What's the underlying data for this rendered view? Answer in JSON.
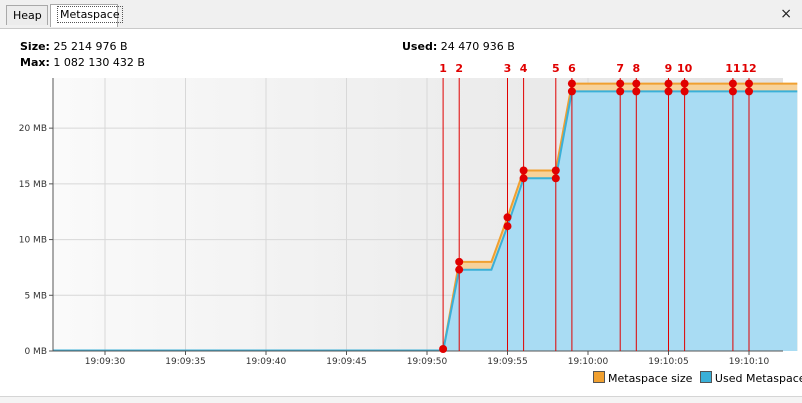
{
  "tabs": [
    {
      "label": "Heap",
      "active": false
    },
    {
      "label": "Metaspace",
      "active": true
    }
  ],
  "close_symbol": "×",
  "stats": {
    "size_label": "Size:",
    "size_value": "25 214 976 B",
    "max_label": "Max:",
    "max_value": "1 082 130 432 B",
    "used_label": "Used:",
    "used_value": "24 470 936 B"
  },
  "legend": {
    "metaspace_size": "Metaspace size",
    "used_metaspace": "Used Metaspace"
  },
  "colors": {
    "metaspace_size_line": "#f0a030",
    "metaspace_size_fill": "#f7d29a",
    "used_line": "#3ab0d8",
    "used_fill": "#a9dcf3",
    "marker": "#e00000"
  },
  "chart_data": {
    "type": "area",
    "title": "",
    "xlabel": "",
    "ylabel": "",
    "x_ticks": [
      "19:09:30",
      "19:09:35",
      "19:09:40",
      "19:09:45",
      "19:09:50",
      "19:09:55",
      "19:10:00",
      "19:10:05",
      "19:10:10"
    ],
    "y_ticks": [
      "0 MB",
      "5 MB",
      "10 MB",
      "15 MB",
      "20 MB"
    ],
    "ylim_mb": [
      0,
      24.5
    ],
    "grid": true,
    "legend_position": "bottom-right",
    "series": [
      {
        "name": "Metaspace size",
        "points": [
          [
            "19:09:51",
            0
          ],
          [
            "19:09:52",
            8.0
          ],
          [
            "19:09:54",
            8.0
          ],
          [
            "19:09:55",
            12.0
          ],
          [
            "19:09:56",
            16.2
          ],
          [
            "19:09:58",
            16.2
          ],
          [
            "19:09:59",
            24.0
          ],
          [
            "19:10:13",
            24.0
          ]
        ]
      },
      {
        "name": "Used Metaspace",
        "points": [
          [
            "19:09:51",
            0
          ],
          [
            "19:09:52",
            7.3
          ],
          [
            "19:09:54",
            7.3
          ],
          [
            "19:09:55",
            11.2
          ],
          [
            "19:09:56",
            15.5
          ],
          [
            "19:09:58",
            15.5
          ],
          [
            "19:09:59",
            23.3
          ],
          [
            "19:10:13",
            23.3
          ]
        ]
      }
    ],
    "markers": [
      {
        "label": "1",
        "time": "19:09:51.0"
      },
      {
        "label": "2",
        "time": "19:09:52.0"
      },
      {
        "label": "3",
        "time": "19:09:55.0"
      },
      {
        "label": "4",
        "time": "19:09:56.0"
      },
      {
        "label": "5",
        "time": "19:09:58.0"
      },
      {
        "label": "6",
        "time": "19:09:59.0"
      },
      {
        "label": "7",
        "time": "19:10:02.0"
      },
      {
        "label": "8",
        "time": "19:10:03.0"
      },
      {
        "label": "9",
        "time": "19:10:05.0"
      },
      {
        "label": "10",
        "time": "19:10:06.0"
      },
      {
        "label": "11",
        "time": "19:10:09.0"
      },
      {
        "label": "12",
        "time": "19:10:10.0"
      }
    ]
  }
}
